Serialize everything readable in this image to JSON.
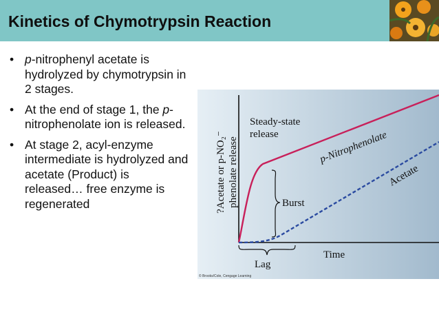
{
  "slide": {
    "title": "Kinetics of Chymotrypsin Reaction",
    "bullets": [
      {
        "parts": [
          {
            "t": "p",
            "i": true
          },
          {
            "t": "-nitrophenyl acetate is hydrolyzed by chymotrypsin in 2 stages."
          }
        ]
      },
      {
        "parts": [
          {
            "t": "At the end of stage 1, the "
          },
          {
            "t": "p",
            "i": true
          },
          {
            "t": "-nitrophenolate ion is released."
          }
        ]
      },
      {
        "parts": [
          {
            "t": "At stage 2, acyl-enzyme intermediate is hydrolyzed and acetate (Product) is released… free enzyme is regenerated"
          }
        ]
      }
    ]
  },
  "figure": {
    "y_axis_label_line1": "?Acetate or p-NO₂⁻",
    "y_axis_label_line2": "phenolate release",
    "x_axis_label": "Time",
    "annotations": {
      "steady_state_line1": "Steady-state",
      "steady_state_line2": "release",
      "burst": "Burst",
      "lag": "Lag",
      "nitrophenolate_curve": "p-Nitrophenolate",
      "acetate_curve": "Acetate"
    },
    "credit": "© Brooks/Cole, Cengage Learning",
    "colors": {
      "background_light": "#e6eff5",
      "background_dark": "#a2bacd",
      "nitrophenolate": "#c8205a",
      "acetate": "#2a4aa0"
    }
  }
}
